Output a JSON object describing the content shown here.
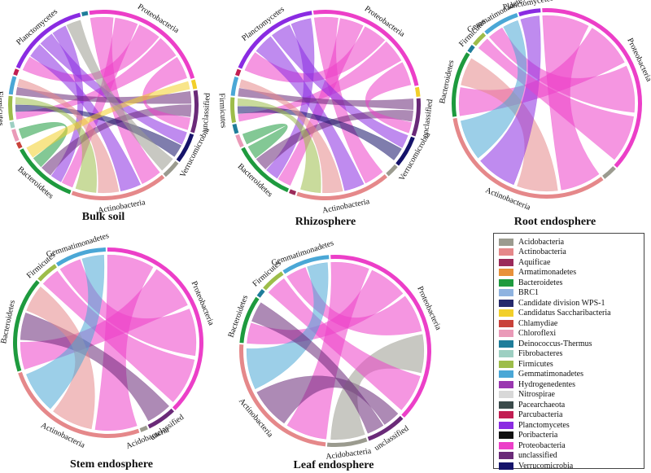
{
  "phyla_colors": {
    "Acidobacteria": "#9b9b8f",
    "Actinobacteria": "#e5888a",
    "Aquificae": "#9b2a5a",
    "Armatimonadetes": "#e8913a",
    "Bacteroidetes": "#1e9a3e",
    "BRC1": "#8fb3e0",
    "Candidate division WPS-1": "#262a6c",
    "Candidatus Saccharibacteria": "#f2cf2a",
    "Chlamydiae": "#c9423a",
    "Chloroflexi": "#ea9ab8",
    "Deinococcus-Thermus": "#1f7d9a",
    "Fibrobacteres": "#9dcfc2",
    "Firmicutes": "#9dbd4a",
    "Gemmatimonadetes": "#4aa7d6",
    "Hydrogenedentes": "#9a37b0",
    "Nitrospirae": "#d8d8d8",
    "Pacearchaeota": "#3b4b4b",
    "Parcubacteria": "#c21e52",
    "Planctomycetes": "#8a2be2",
    "Poribacteria": "#111111",
    "Proteobacteria": "#ec3fc8",
    "unclassified": "#6a2a78",
    "Verrucomicrobia": "#15136a"
  },
  "legend": {
    "items": [
      "Acidobacteria",
      "Actinobacteria",
      "Aquificae",
      "Armatimonadetes",
      "Bacteroidetes",
      "BRC1",
      "Candidate division WPS-1",
      "Candidatus Saccharibacteria",
      "Chlamydiae",
      "Chloroflexi",
      "Deinococcus-Thermus",
      "Fibrobacteres",
      "Firmicutes",
      "Gemmatimonadetes",
      "Hydrogenedentes",
      "Nitrospirae",
      "Pacearchaeota",
      "Parcubacteria",
      "Planctomycetes",
      "Poribacteria",
      "Proteobacteria",
      "unclassified",
      "Verrucomicrobia"
    ]
  },
  "chart_data": [
    {
      "type": "chord",
      "title": "Bulk soil",
      "sectors": [
        {
          "name": "Proteobacteria",
          "label": "Proteobacteria",
          "value": 22
        },
        {
          "name": "Candidatus Saccharibacteria",
          "label": "",
          "value": 1.5
        },
        {
          "name": "unclassified",
          "label": "unclassified",
          "value": 7
        },
        {
          "name": "Verrucomicrobia",
          "label": "Verrucomicrobia",
          "value": 5
        },
        {
          "name": "Acidobacteria",
          "label": "",
          "value": 3
        },
        {
          "name": "Actinobacteria",
          "label": "Actinobacteria",
          "value": 16
        },
        {
          "name": "Bacteroidetes",
          "label": "Bacteroidetes",
          "value": 11
        },
        {
          "name": "Chlamydiae",
          "label": "",
          "value": 1
        },
        {
          "name": "Chloroflexi",
          "label": "",
          "value": 2
        },
        {
          "name": "Fibrobacteres",
          "label": "",
          "value": 1
        },
        {
          "name": "Firmicutes",
          "label": "Firmicutes",
          "value": 4
        },
        {
          "name": "Gemmatimonadetes",
          "label": "",
          "value": 3
        },
        {
          "name": "Parcubacteria",
          "label": "",
          "value": 1
        },
        {
          "name": "Planctomycetes",
          "label": "Planctomycetes",
          "value": 14
        },
        {
          "name": "Deinococcus-Thermus",
          "label": "",
          "value": 1
        }
      ],
      "links": [
        [
          "Proteobacteria",
          "Actinobacteria"
        ],
        [
          "Proteobacteria",
          "Bacteroidetes"
        ],
        [
          "Proteobacteria",
          "Planctomycetes"
        ],
        [
          "Proteobacteria",
          "Firmicutes"
        ],
        [
          "Planctomycetes",
          "Actinobacteria"
        ],
        [
          "Planctomycetes",
          "Verrucomicrobia"
        ],
        [
          "Planctomycetes",
          "Bacteroidetes"
        ],
        [
          "unclassified",
          "Gemmatimonadetes"
        ],
        [
          "unclassified",
          "Bacteroidetes"
        ],
        [
          "Verrucomicrobia",
          "Firmicutes"
        ],
        [
          "Bacteroidetes",
          "Chloroflexi"
        ],
        [
          "Actinobacteria",
          "Gemmatimonadetes"
        ],
        [
          "Proteobacteria",
          "unclassified"
        ],
        [
          "Firmicutes",
          "Actinobacteria"
        ],
        [
          "Candidatus Saccharibacteria",
          "Bacteroidetes"
        ],
        [
          "Acidobacteria",
          "Planctomycetes"
        ]
      ]
    },
    {
      "type": "chord",
      "title": "Rhizosphere",
      "sectors": [
        {
          "name": "Proteobacteria",
          "label": "Proteobacteria",
          "value": 22
        },
        {
          "name": "Candidatus Saccharibacteria",
          "label": "",
          "value": 1.5
        },
        {
          "name": "unclassified",
          "label": "unclassified",
          "value": 6
        },
        {
          "name": "Verrucomicrobia",
          "label": "Verrucomicrobia",
          "value": 5
        },
        {
          "name": "Acidobacteria",
          "label": "",
          "value": 2
        },
        {
          "name": "Actinobacteria",
          "label": "Actinobacteria",
          "value": 15
        },
        {
          "name": "Aquificae",
          "label": "",
          "value": 1
        },
        {
          "name": "Bacteroidetes",
          "label": "Bacteroidetes",
          "value": 10
        },
        {
          "name": "Chloroflexi",
          "label": "",
          "value": 2
        },
        {
          "name": "Deinococcus-Thermus",
          "label": "",
          "value": 1.5
        },
        {
          "name": "Firmicutes",
          "label": "Firmicutes",
          "value": 4
        },
        {
          "name": "Gemmatimonadetes",
          "label": "",
          "value": 3
        },
        {
          "name": "Parcubacteria",
          "label": "",
          "value": 1
        },
        {
          "name": "Planctomycetes",
          "label": "Planctomycetes",
          "value": 15
        }
      ],
      "links": [
        [
          "Proteobacteria",
          "Actinobacteria"
        ],
        [
          "Proteobacteria",
          "Bacteroidetes"
        ],
        [
          "Proteobacteria",
          "Planctomycetes"
        ],
        [
          "Proteobacteria",
          "Firmicutes"
        ],
        [
          "Planctomycetes",
          "Actinobacteria"
        ],
        [
          "Planctomycetes",
          "Verrucomicrobia"
        ],
        [
          "Planctomycetes",
          "Bacteroidetes"
        ],
        [
          "unclassified",
          "Gemmatimonadetes"
        ],
        [
          "unclassified",
          "Bacteroidetes"
        ],
        [
          "Verrucomicrobia",
          "Firmicutes"
        ],
        [
          "Bacteroidetes",
          "Chloroflexi"
        ],
        [
          "Actinobacteria",
          "Gemmatimonadetes"
        ],
        [
          "Proteobacteria",
          "unclassified"
        ],
        [
          "Firmicutes",
          "Actinobacteria"
        ]
      ]
    },
    {
      "type": "chord",
      "title": "Root endosphere",
      "sectors": [
        {
          "name": "Proteobacteria",
          "label": "Proteobacteria",
          "value": 30
        },
        {
          "name": "Acidobacteria",
          "label": "",
          "value": 2
        },
        {
          "name": "Actinobacteria",
          "label": "Actinobacteria",
          "value": 26
        },
        {
          "name": "Bacteroidetes",
          "label": "Bacteroidetes",
          "value": 9
        },
        {
          "name": "Deinococcus-Thermus",
          "label": "",
          "value": 1
        },
        {
          "name": "Firmicutes",
          "label": "Firmicutes",
          "value": 2
        },
        {
          "name": "Gemmatimonadetes",
          "label": "Gemmatimonadetes",
          "value": 5
        },
        {
          "name": "Planctomycetes",
          "label": "Planctomycetes",
          "value": 3
        }
      ],
      "links": [
        [
          "Proteobacteria",
          "Actinobacteria"
        ],
        [
          "Proteobacteria",
          "Bacteroidetes"
        ],
        [
          "Proteobacteria",
          "Gemmatimonadetes"
        ],
        [
          "Actinobacteria",
          "Bacteroidetes"
        ],
        [
          "Planctomycetes",
          "Actinobacteria"
        ],
        [
          "Proteobacteria",
          "Firmicutes"
        ],
        [
          "Gemmatimonadetes",
          "Actinobacteria"
        ]
      ]
    },
    {
      "type": "chord",
      "title": "Stem endosphere",
      "sectors": [
        {
          "name": "Proteobacteria",
          "label": "Proteobacteria",
          "value": 30
        },
        {
          "name": "unclassified",
          "label": "unclassified",
          "value": 4
        },
        {
          "name": "Acidobacteria",
          "label": "Acidobacteria",
          "value": 1
        },
        {
          "name": "Actinobacteria",
          "label": "Actinobacteria",
          "value": 20
        },
        {
          "name": "Bacteroidetes",
          "label": "Bacteroidetes",
          "value": 13
        },
        {
          "name": "Firmicutes",
          "label": "Firmicutes",
          "value": 3
        },
        {
          "name": "Gemmatimonadetes",
          "label": "Gemmatimonadetes",
          "value": 7
        }
      ],
      "links": [
        [
          "Proteobacteria",
          "Actinobacteria"
        ],
        [
          "Proteobacteria",
          "Bacteroidetes"
        ],
        [
          "Proteobacteria",
          "Gemmatimonadetes"
        ],
        [
          "unclassified",
          "Bacteroidetes"
        ],
        [
          "Actinobacteria",
          "Bacteroidetes"
        ],
        [
          "Proteobacteria",
          "Firmicutes"
        ],
        [
          "Gemmatimonadetes",
          "Actinobacteria"
        ]
      ]
    },
    {
      "type": "chord",
      "title": "Leaf endosphere",
      "sectors": [
        {
          "name": "Proteobacteria",
          "label": "Proteobacteria",
          "value": 28
        },
        {
          "name": "unclassified",
          "label": "unclassified",
          "value": 5
        },
        {
          "name": "Acidobacteria",
          "label": "Acidobacteria",
          "value": 5
        },
        {
          "name": "Actinobacteria",
          "label": "Actinobacteria",
          "value": 18
        },
        {
          "name": "Bacteroidetes",
          "label": "Bacteroidetes",
          "value": 6
        },
        {
          "name": "Deinococcus-Thermus",
          "label": "",
          "value": 1
        },
        {
          "name": "Firmicutes",
          "label": "Firmicutes",
          "value": 3
        },
        {
          "name": "Gemmatimonadetes",
          "label": "Gemmatimonadetes",
          "value": 6
        }
      ],
      "links": [
        [
          "Proteobacteria",
          "Actinobacteria"
        ],
        [
          "Proteobacteria",
          "Bacteroidetes"
        ],
        [
          "Proteobacteria",
          "Gemmatimonadetes"
        ],
        [
          "unclassified",
          "Actinobacteria"
        ],
        [
          "Acidobacteria",
          "Proteobacteria"
        ],
        [
          "Proteobacteria",
          "Firmicutes"
        ],
        [
          "Gemmatimonadetes",
          "Actinobacteria"
        ],
        [
          "unclassified",
          "Bacteroidetes"
        ]
      ]
    }
  ]
}
